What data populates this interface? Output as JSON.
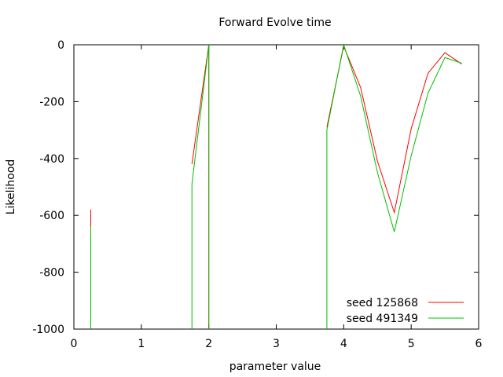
{
  "chart_data": {
    "type": "line",
    "title": "Forward Evolve time",
    "xlabel": "parameter value",
    "ylabel": "Likelihood",
    "xlim": [
      0,
      6
    ],
    "ylim": [
      -1000,
      0
    ],
    "xticks": [
      0,
      1,
      2,
      3,
      4,
      5,
      6
    ],
    "yticks": [
      0,
      -200,
      -400,
      -600,
      -800,
      -1000
    ],
    "grid": false,
    "legend_position": "bottom-right",
    "series": [
      {
        "name": "seed 125868",
        "color": "#ff0000",
        "segments": [
          [
            [
              0.25,
              -580
            ],
            [
              0.25,
              -1000
            ]
          ],
          [
            [
              1.75,
              -420
            ],
            [
              2.0,
              0
            ],
            [
              2.0,
              -1000
            ]
          ],
          [
            [
              3.75,
              -290
            ],
            [
              4.0,
              -5
            ],
            [
              4.25,
              -150
            ],
            [
              4.5,
              -410
            ],
            [
              4.75,
              -590
            ],
            [
              5.0,
              -295
            ],
            [
              5.25,
              -100
            ],
            [
              5.5,
              -28
            ],
            [
              5.75,
              -68
            ]
          ]
        ]
      },
      {
        "name": "seed 491349",
        "color": "#00c000",
        "segments": [
          [
            [
              0.25,
              -640
            ],
            [
              0.25,
              -1000
            ]
          ],
          [
            [
              1.75,
              -1000
            ],
            [
              1.75,
              -490
            ],
            [
              2.0,
              0
            ],
            [
              2.0,
              -1000
            ]
          ],
          [
            [
              3.75,
              -1000
            ],
            [
              3.75,
              -300
            ],
            [
              4.0,
              0
            ],
            [
              4.25,
              -180
            ],
            [
              4.5,
              -450
            ],
            [
              4.75,
              -658
            ],
            [
              5.0,
              -390
            ],
            [
              5.25,
              -170
            ],
            [
              5.5,
              -45
            ],
            [
              5.75,
              -65
            ]
          ]
        ]
      }
    ]
  }
}
